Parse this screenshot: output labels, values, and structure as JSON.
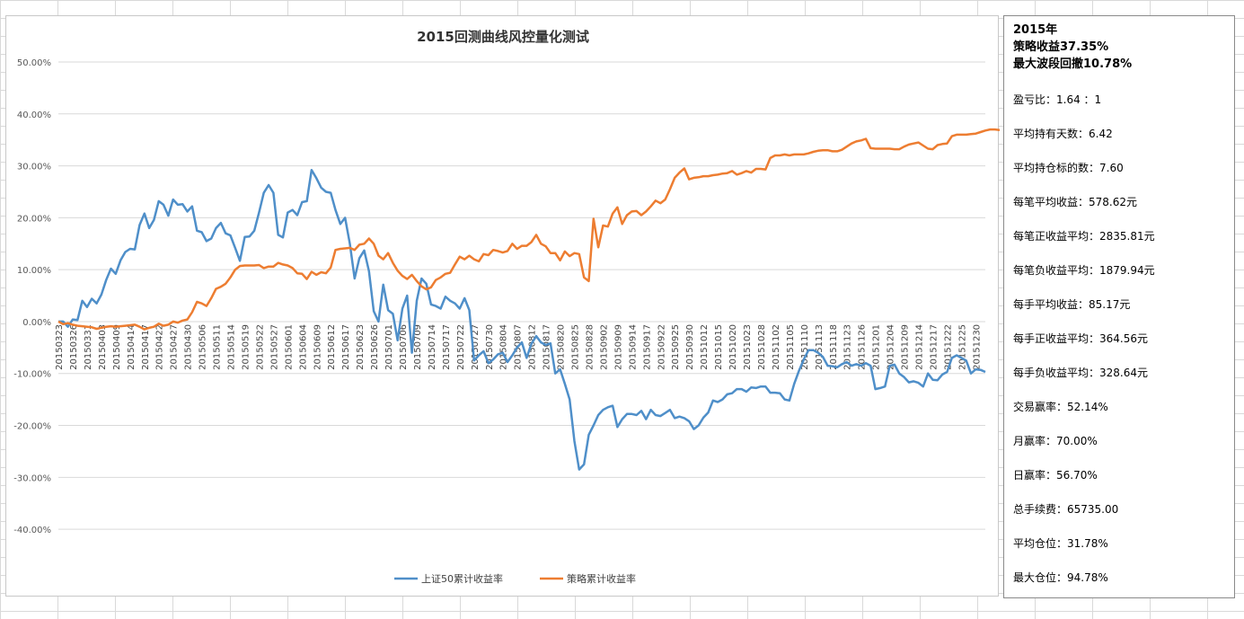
{
  "chart_data": {
    "type": "line",
    "title": "2015回测曲线风控量化测试",
    "xlabel": "",
    "ylabel": "",
    "ylim": [
      -0.45,
      0.5
    ],
    "grid": true,
    "legend_position": "bottom",
    "y_ticks": [
      "50.00%",
      "40.00%",
      "30.00%",
      "20.00%",
      "10.00%",
      "0.00%",
      "-10.00%",
      "-20.00%",
      "-30.00%",
      "-40.00%"
    ],
    "y_tick_values": [
      0.5,
      0.4,
      0.3,
      0.2,
      0.1,
      0.0,
      -0.1,
      -0.2,
      -0.3,
      -0.4
    ],
    "x_tick_labels": [
      "20150323",
      "20150326",
      "20150331",
      "20150403",
      "20150409",
      "20150414",
      "20150417",
      "20150422",
      "20150427",
      "20150430",
      "20150506",
      "20150511",
      "20150514",
      "20150519",
      "20150522",
      "20150527",
      "20150601",
      "20150604",
      "20150609",
      "20150612",
      "20150617",
      "20150623",
      "20150626",
      "20150701",
      "20150706",
      "20150709",
      "20150714",
      "20150717",
      "20150722",
      "20150727",
      "20150730",
      "20150804",
      "20150807",
      "20150812",
      "20150817",
      "20150820",
      "20150825",
      "20150828",
      "20150902",
      "20150909",
      "20150914",
      "20150917",
      "20150922",
      "20150925",
      "20150930",
      "20151012",
      "20151015",
      "20151020",
      "20151023",
      "20151028",
      "20151102",
      "20151105",
      "20151110",
      "20151113",
      "20151118",
      "20151123",
      "20151126",
      "20151201",
      "20151204",
      "20151209",
      "20151214",
      "20151217",
      "20151222",
      "20151225",
      "20151230"
    ],
    "x_label_step": 3,
    "series": [
      {
        "name": "上证50累计收益率",
        "color": "#4f8fc9",
        "values": [
          0.0,
          0.0,
          -0.01,
          0.004,
          0.003,
          0.04,
          0.028,
          0.044,
          0.035,
          0.052,
          0.08,
          0.102,
          0.092,
          0.118,
          0.134,
          0.14,
          0.139,
          0.186,
          0.208,
          0.18,
          0.196,
          0.232,
          0.225,
          0.204,
          0.235,
          0.225,
          0.226,
          0.212,
          0.222,
          0.175,
          0.172,
          0.155,
          0.16,
          0.18,
          0.19,
          0.17,
          0.166,
          0.142,
          0.117,
          0.163,
          0.164,
          0.175,
          0.21,
          0.248,
          0.263,
          0.248,
          0.167,
          0.162,
          0.21,
          0.215,
          0.205,
          0.23,
          0.232,
          0.292,
          0.276,
          0.258,
          0.25,
          0.248,
          0.215,
          0.188,
          0.2,
          0.15,
          0.083,
          0.122,
          0.137,
          0.097,
          0.02,
          0.0,
          0.071,
          0.022,
          0.015,
          -0.036,
          0.025,
          0.05,
          -0.06,
          0.04,
          0.083,
          0.073,
          0.033,
          0.03,
          0.025,
          0.048,
          0.04,
          0.035,
          0.025,
          0.045,
          0.022,
          -0.075,
          -0.065,
          -0.057,
          -0.08,
          -0.073,
          -0.063,
          -0.06,
          -0.078,
          -0.065,
          -0.05,
          -0.04,
          -0.07,
          -0.043,
          -0.028,
          -0.04,
          -0.045,
          -0.042,
          -0.1,
          -0.092,
          -0.12,
          -0.15,
          -0.23,
          -0.285,
          -0.275,
          -0.218,
          -0.2,
          -0.18,
          -0.17,
          -0.165,
          -0.162,
          -0.203,
          -0.188,
          -0.178,
          -0.178,
          -0.18,
          -0.172,
          -0.188,
          -0.17,
          -0.18,
          -0.182,
          -0.176,
          -0.17,
          -0.186,
          -0.183,
          -0.186,
          -0.192,
          -0.207,
          -0.2,
          -0.185,
          -0.175,
          -0.152,
          -0.155,
          -0.15,
          -0.14,
          -0.138,
          -0.13,
          -0.13,
          -0.135,
          -0.127,
          -0.128,
          -0.125,
          -0.125,
          -0.137,
          -0.137,
          -0.138,
          -0.15,
          -0.152,
          -0.12,
          -0.095,
          -0.073,
          -0.055,
          -0.055,
          -0.06,
          -0.068,
          -0.085,
          -0.086,
          -0.088,
          -0.082,
          -0.078,
          -0.085,
          -0.082,
          -0.085,
          -0.08,
          -0.085,
          -0.13,
          -0.128,
          -0.125,
          -0.085,
          -0.083,
          -0.1,
          -0.107,
          -0.117,
          -0.115,
          -0.118,
          -0.125,
          -0.1,
          -0.112,
          -0.113,
          -0.102,
          -0.097,
          -0.07,
          -0.065,
          -0.07,
          -0.075,
          -0.1,
          -0.092,
          -0.093,
          -0.097
        ]
      },
      {
        "name": "策略累计收益率",
        "color": "#ed7d31",
        "values": [
          0.0,
          -0.005,
          -0.003,
          -0.006,
          -0.008,
          -0.009,
          -0.01,
          -0.011,
          -0.014,
          -0.012,
          -0.01,
          -0.009,
          -0.01,
          -0.009,
          -0.008,
          -0.007,
          -0.006,
          -0.01,
          -0.015,
          -0.012,
          -0.01,
          -0.004,
          -0.008,
          -0.006,
          0.0,
          -0.002,
          0.002,
          0.004,
          0.018,
          0.038,
          0.035,
          0.03,
          0.045,
          0.063,
          0.067,
          0.073,
          0.085,
          0.1,
          0.107,
          0.108,
          0.108,
          0.108,
          0.109,
          0.103,
          0.106,
          0.106,
          0.113,
          0.11,
          0.108,
          0.103,
          0.093,
          0.092,
          0.082,
          0.096,
          0.09,
          0.095,
          0.093,
          0.104,
          0.138,
          0.14,
          0.141,
          0.142,
          0.138,
          0.148,
          0.15,
          0.16,
          0.15,
          0.127,
          0.12,
          0.132,
          0.113,
          0.098,
          0.088,
          0.082,
          0.09,
          0.078,
          0.068,
          0.062,
          0.066,
          0.08,
          0.085,
          0.092,
          0.094,
          0.11,
          0.125,
          0.12,
          0.127,
          0.12,
          0.116,
          0.13,
          0.128,
          0.138,
          0.136,
          0.133,
          0.136,
          0.15,
          0.14,
          0.146,
          0.146,
          0.153,
          0.167,
          0.15,
          0.145,
          0.132,
          0.132,
          0.118,
          0.135,
          0.126,
          0.132,
          0.13,
          0.085,
          0.078,
          0.198,
          0.143,
          0.185,
          0.183,
          0.208,
          0.22,
          0.188,
          0.205,
          0.212,
          0.213,
          0.205,
          0.212,
          0.222,
          0.233,
          0.228,
          0.235,
          0.255,
          0.277,
          0.287,
          0.295,
          0.274,
          0.277,
          0.278,
          0.28,
          0.28,
          0.282,
          0.283,
          0.285,
          0.286,
          0.29,
          0.283,
          0.286,
          0.29,
          0.287,
          0.294,
          0.294,
          0.293,
          0.315,
          0.32,
          0.32,
          0.322,
          0.32,
          0.322,
          0.322,
          0.322,
          0.324,
          0.327,
          0.329,
          0.33,
          0.33,
          0.328,
          0.328,
          0.331,
          0.337,
          0.343,
          0.347,
          0.349,
          0.352,
          0.334,
          0.333,
          0.333,
          0.333,
          0.333,
          0.332,
          0.332,
          0.337,
          0.341,
          0.343,
          0.345,
          0.339,
          0.333,
          0.332,
          0.34,
          0.342,
          0.343,
          0.357,
          0.36,
          0.36,
          0.36,
          0.361,
          0.362,
          0.365,
          0.368,
          0.37,
          0.37,
          0.369
        ]
      }
    ]
  },
  "stats": {
    "year": "2015年",
    "strategy_return": "策略收益37.35%",
    "max_drawdown": "最大波段回撤10.78%",
    "rows": [
      "盈亏比：1.64 ：1",
      "平均持有天数：6.42",
      "平均持仓标的数：7.60",
      "每笔平均收益：578.62元",
      "每笔正收益平均：2835.81元",
      "每笔负收益平均：1879.94元",
      "每手平均收益：85.17元",
      "每手正收益平均：364.56元",
      "每手负收益平均：328.64元",
      "交易赢率：52.14%",
      "月赢率：70.00%",
      "日赢率：56.70%",
      "总手续费：65735.00",
      "平均仓位：31.78%",
      "最大仓位：94.78%"
    ]
  }
}
